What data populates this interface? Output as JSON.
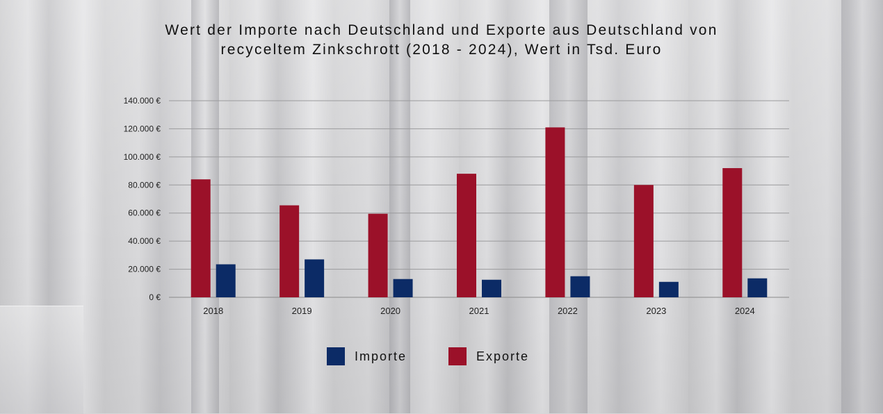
{
  "chart_data": {
    "type": "bar",
    "title": "Wert der Importe nach Deutschland und Exporte aus Deutschland von\nrecyceltem Zinkschrott (2018 - 2024), Wert in Tsd. Euro",
    "categories": [
      "2018",
      "2019",
      "2020",
      "2021",
      "2022",
      "2023",
      "2024"
    ],
    "series": [
      {
        "name": "Exporte",
        "color": "#9b1129",
        "values": [
          84000,
          65500,
          59500,
          88000,
          121000,
          80000,
          92000
        ]
      },
      {
        "name": "Importe",
        "color": "#0c2b66",
        "values": [
          23500,
          27000,
          13000,
          12500,
          15000,
          11000,
          13500
        ]
      }
    ],
    "ylim": [
      0,
      140000
    ],
    "yticks": [
      0,
      20000,
      40000,
      60000,
      80000,
      100000,
      120000,
      140000
    ],
    "ytick_labels": [
      "0 €",
      "20.000 €",
      "40.000 €",
      "60.000 €",
      "80.000 €",
      "100.000 €",
      "120.000 €",
      "140.000 €"
    ],
    "grid": true,
    "legend_position": "bottom"
  },
  "legend": [
    {
      "label": "Importe",
      "color": "#0c2b66"
    },
    {
      "label": "Exporte",
      "color": "#9b1129"
    }
  ]
}
